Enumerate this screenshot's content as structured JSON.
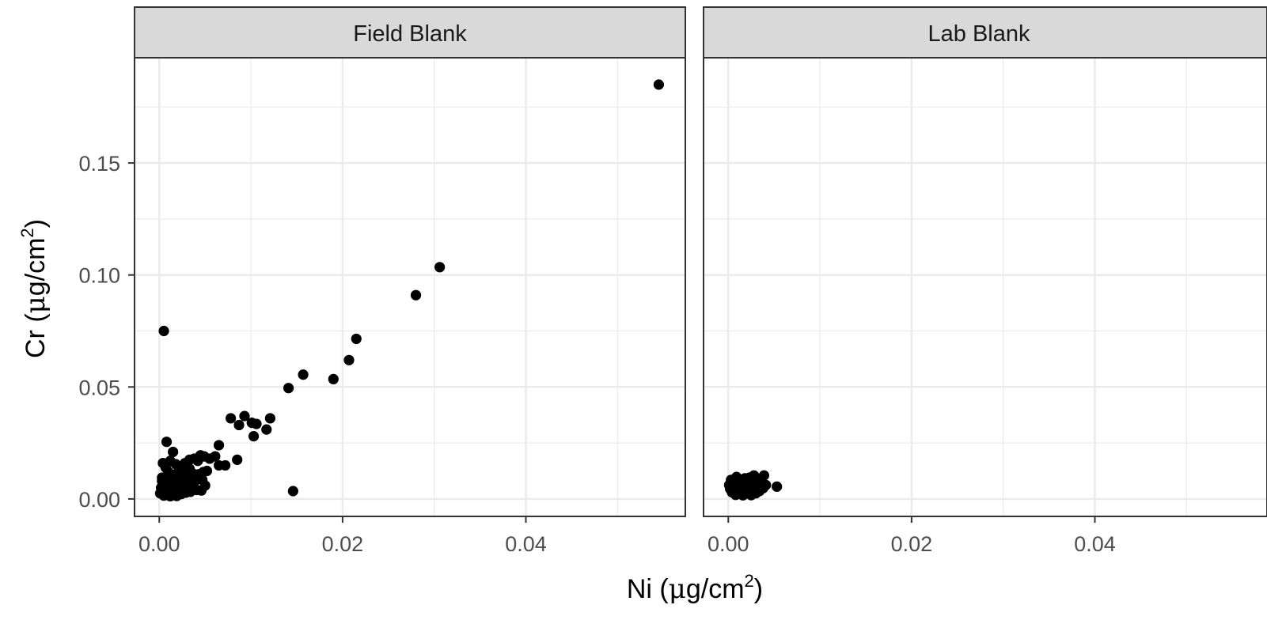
{
  "chart_data": {
    "type": "scatter",
    "facets": [
      {
        "label": "Field Blank",
        "points": [
          [
            0.0545,
            0.185
          ],
          [
            0.0306,
            0.1035
          ],
          [
            0.028,
            0.091
          ],
          [
            0.0215,
            0.0715
          ],
          [
            0.0207,
            0.062
          ],
          [
            0.0157,
            0.0555
          ],
          [
            0.019,
            0.0535
          ],
          [
            0.0141,
            0.0495
          ],
          [
            0.0005,
            0.075
          ],
          [
            0.0146,
            0.0035
          ],
          [
            0.0078,
            0.036
          ],
          [
            0.0093,
            0.037
          ],
          [
            0.0087,
            0.033
          ],
          [
            0.0101,
            0.034
          ],
          [
            0.0103,
            0.028
          ],
          [
            0.0106,
            0.0335
          ],
          [
            0.0121,
            0.036
          ],
          [
            0.0117,
            0.031
          ],
          [
            0.0085,
            0.0175
          ],
          [
            0.0065,
            0.024
          ],
          [
            0.0055,
            0.018
          ],
          [
            0.0061,
            0.019
          ],
          [
            0.0072,
            0.015
          ],
          [
            0.0065,
            0.015
          ],
          [
            0.0049,
            0.019
          ],
          [
            0.0045,
            0.0195
          ],
          [
            0.0008,
            0.0255
          ],
          [
            0.0015,
            0.021
          ],
          [
            0.0004,
            0.016
          ],
          [
            0.0012,
            0.017
          ],
          [
            0.0007,
            0.014
          ],
          [
            0.0018,
            0.0155
          ],
          [
            0.0022,
            0.0145
          ],
          [
            0.0028,
            0.016
          ],
          [
            0.0033,
            0.0175
          ],
          [
            0.0038,
            0.018
          ],
          [
            0.0042,
            0.017
          ],
          [
            0.0025,
            0.012
          ],
          [
            0.0031,
            0.0125
          ],
          [
            0.0036,
            0.0115
          ],
          [
            0.0048,
            0.012
          ],
          [
            0.0052,
            0.0125
          ],
          [
            0.0044,
            0.009
          ],
          [
            0.0039,
            0.008
          ],
          [
            0.0027,
            0.0085
          ],
          [
            0.0019,
            0.009
          ],
          [
            0.0011,
            0.0105
          ],
          [
            0.0003,
            0.0095
          ],
          [
            0.0009,
            0.007
          ],
          [
            0.0014,
            0.0065
          ],
          [
            0.0021,
            0.0062
          ],
          [
            0.0026,
            0.0058
          ],
          [
            0.0032,
            0.007
          ],
          [
            0.0037,
            0.005
          ],
          [
            0.0041,
            0.004
          ],
          [
            0.0046,
            0.0038
          ],
          [
            0.005,
            0.006
          ],
          [
            0.0002,
            0.005
          ],
          [
            0.0006,
            0.0045
          ],
          [
            0.0013,
            0.004
          ],
          [
            0.0017,
            0.0035
          ],
          [
            0.0023,
            0.003
          ],
          [
            0.0029,
            0.0028
          ],
          [
            0.0034,
            0.0032
          ],
          [
            0.0001,
            0.0025
          ],
          [
            0.0008,
            0.002
          ],
          [
            0.0016,
            0.002
          ],
          [
            0.0024,
            0.0022
          ],
          [
            0.0005,
            0.0015
          ],
          [
            0.0012,
            0.0012
          ],
          [
            0.0019,
            0.0013
          ],
          [
            0.0003,
            0.008
          ],
          [
            0.001,
            0.012
          ],
          [
            0.0018,
            0.011
          ],
          [
            0.0027,
            0.01
          ],
          [
            0.0035,
            0.0095
          ],
          [
            0.0043,
            0.011
          ],
          [
            0.0047,
            0.0085
          ],
          [
            0.0033,
            0.0135
          ],
          [
            0.0022,
            0.0125
          ]
        ]
      },
      {
        "label": "Lab Blank",
        "points": [
          [
            0.0053,
            0.0055
          ],
          [
            0.0039,
            0.0105
          ],
          [
            0.0028,
            0.0105
          ],
          [
            0.0032,
            0.009
          ],
          [
            0.0023,
            0.0095
          ],
          [
            0.0018,
            0.0092
          ],
          [
            0.0009,
            0.0098
          ],
          [
            0.0003,
            0.0085
          ],
          [
            0.0006,
            0.0075
          ],
          [
            0.0013,
            0.0072
          ],
          [
            0.0021,
            0.0075
          ],
          [
            0.0027,
            0.0078
          ],
          [
            0.0035,
            0.0068
          ],
          [
            0.0041,
            0.0062
          ],
          [
            0.0001,
            0.0062
          ],
          [
            0.0007,
            0.0055
          ],
          [
            0.0015,
            0.0055
          ],
          [
            0.0024,
            0.0058
          ],
          [
            0.0031,
            0.0052
          ],
          [
            0.0038,
            0.0048
          ],
          [
            0.0002,
            0.0045
          ],
          [
            0.0011,
            0.0042
          ],
          [
            0.0019,
            0.004
          ],
          [
            0.0026,
            0.0038
          ],
          [
            0.0034,
            0.0035
          ],
          [
            0.0004,
            0.003
          ],
          [
            0.0012,
            0.0028
          ],
          [
            0.0022,
            0.0026
          ],
          [
            0.003,
            0.0025
          ],
          [
            0.0008,
            0.0018
          ],
          [
            0.0016,
            0.0016
          ],
          [
            0.0025,
            0.0017
          ],
          [
            0.0005,
            0.0065
          ],
          [
            0.0029,
            0.0088
          ],
          [
            0.0036,
            0.0082
          ]
        ]
      }
    ],
    "x_ticks": [
      0,
      0.02,
      0.04
    ],
    "x_tick_labels": [
      "0.00",
      "0.02",
      "0.04"
    ],
    "y_ticks": [
      0,
      0.05,
      0.1,
      0.15
    ],
    "y_tick_labels": [
      "0.00",
      "0.05",
      "0.10",
      "0.15"
    ],
    "xlabel": {
      "element": "Ni",
      "unit_open": "(",
      "mu": "μ",
      "unit": "g/cm",
      "power": "2",
      "unit_close": ")"
    },
    "ylabel": {
      "element": "Cr",
      "unit_open": "(",
      "mu": "μ",
      "unit": "g/cm",
      "power": "2",
      "unit_close": ")"
    },
    "xlim": [
      -0.0027,
      0.0574
    ],
    "ylim": [
      -0.0078,
      0.197
    ],
    "grid": true,
    "theme": "bw",
    "point_color": "#000000",
    "strip_fill": "#d9d9d9",
    "grid_color": "#ebebeb"
  }
}
